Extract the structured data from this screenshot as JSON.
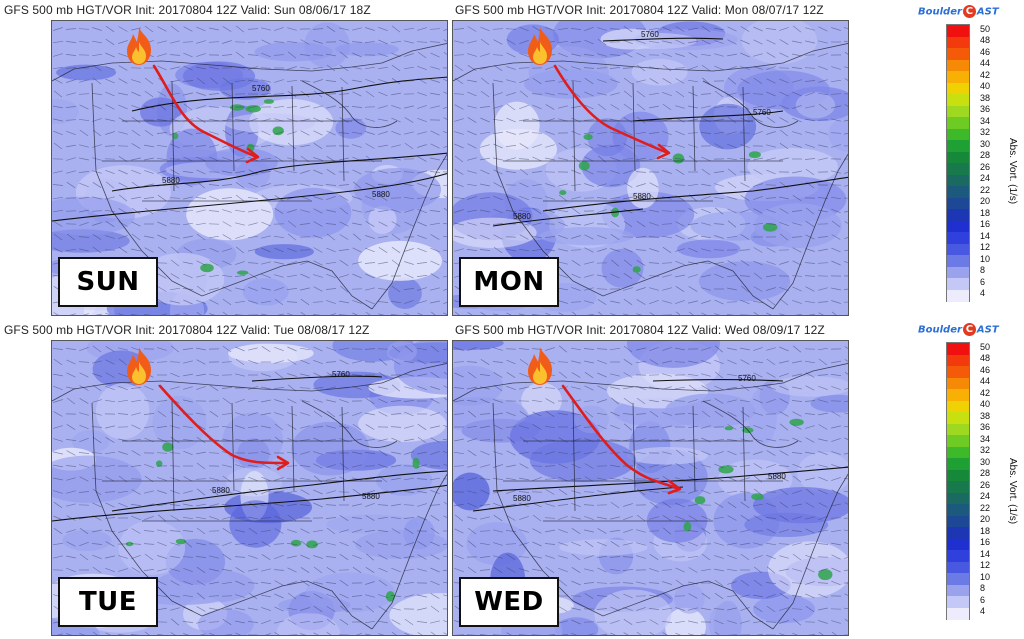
{
  "panels": [
    {
      "title": "GFS  500 mb HGT/VOR Init: 20170804 12Z   Valid: Sun 08/06/17 18Z",
      "day": "SUN",
      "contours": [
        "5760",
        "5880",
        "5880"
      ]
    },
    {
      "title": "GFS  500 mb HGT/VOR Init: 20170804 12Z   Valid: Mon 08/07/17 12Z",
      "day": "MON",
      "contours": [
        "5760",
        "5760",
        "5880",
        "5880"
      ]
    },
    {
      "title": "GFS  500 mb HGT/VOR Init: 20170804 12Z   Valid: Tue 08/08/17 12Z",
      "day": "TUE",
      "contours": [
        "5760",
        "5880",
        "5880"
      ]
    },
    {
      "title": "GFS  500 mb HGT/VOR Init: 20170804 12Z   Valid: Wed 08/09/17 12Z",
      "day": "WED",
      "contours": [
        "5760",
        "5880",
        "5880"
      ]
    }
  ],
  "logo": {
    "part1": "Boulder",
    "part2": "AST",
    "c_letter": "C"
  },
  "colorbar": {
    "title": "Abs. Vort. (1/s)",
    "levels": [
      "50",
      "48",
      "46",
      "44",
      "42",
      "40",
      "38",
      "36",
      "34",
      "32",
      "30",
      "28",
      "26",
      "24",
      "22",
      "20",
      "18",
      "16",
      "14",
      "12",
      "10",
      "8",
      "6",
      "4"
    ],
    "colors": [
      "#f01010",
      "#f23a0c",
      "#f45a08",
      "#f68a06",
      "#f8b004",
      "#f0d204",
      "#c8e010",
      "#9ed820",
      "#6ecb24",
      "#3eb92a",
      "#1ea034",
      "#16883a",
      "#187a4c",
      "#1a6a62",
      "#1b5a7c",
      "#1c4896",
      "#1c36b4",
      "#2030d0",
      "#3040dc",
      "#4858e0",
      "#6c7ae6",
      "#9aa2ee",
      "#c4c8f6",
      "#ececfc"
    ]
  }
}
